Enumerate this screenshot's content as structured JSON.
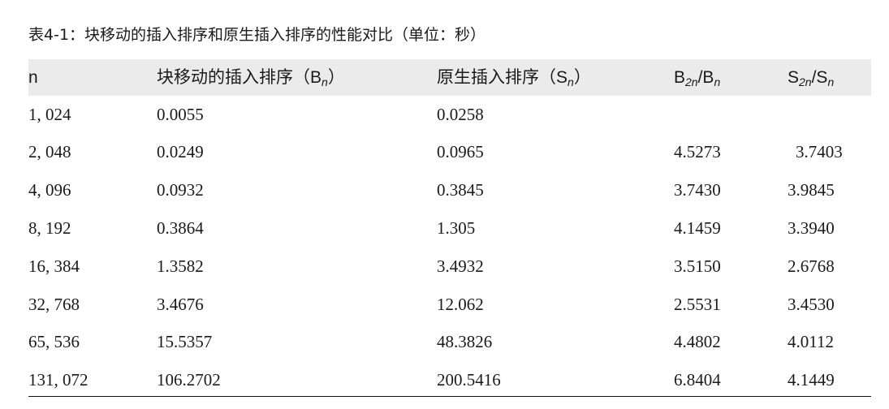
{
  "title": "表4-1：块移动的插入排序和原生插入排序的性能对比（单位：秒）",
  "header": [
    {
      "a": "n",
      "sub": "",
      "b": "",
      "sub2": ""
    },
    {
      "a": "块移动的插入排序（B",
      "sub": "n",
      "b": "）",
      "sub2": ""
    },
    {
      "a": "原生插入排序（S",
      "sub": "n",
      "b": "）",
      "sub2": ""
    },
    {
      "a": "B",
      "sub": "2n",
      "b": "/B",
      "sub2": "n"
    },
    {
      "a": "S",
      "sub": "2n",
      "b": "/S",
      "sub2": "n"
    }
  ],
  "rows": [
    [
      "1, 024",
      "0.0055",
      "0.0258",
      "",
      ""
    ],
    [
      "2, 048",
      "0.0249",
      "0.0965",
      "4.5273",
      "3.7403"
    ],
    [
      "4, 096",
      "0.0932",
      "0.3845",
      "3.7430",
      "3.9845"
    ],
    [
      "8, 192",
      "0.3864",
      "1.305",
      "4.1459",
      "3.3940"
    ],
    [
      "16, 384",
      "1.3582",
      "3.4932",
      "3.5150",
      "2.6768"
    ],
    [
      "32, 768",
      "3.4676",
      "12.062",
      "2.5531",
      "3.4530"
    ],
    [
      "65, 536",
      "15.5357",
      "48.3826",
      "4.4802",
      "4.0112"
    ],
    [
      "131, 072",
      "106.2702",
      "200.5416",
      "6.8404",
      "4.1449"
    ]
  ],
  "colors": {
    "header_bg": "#ebebeb",
    "text": "#1a1a1a"
  }
}
